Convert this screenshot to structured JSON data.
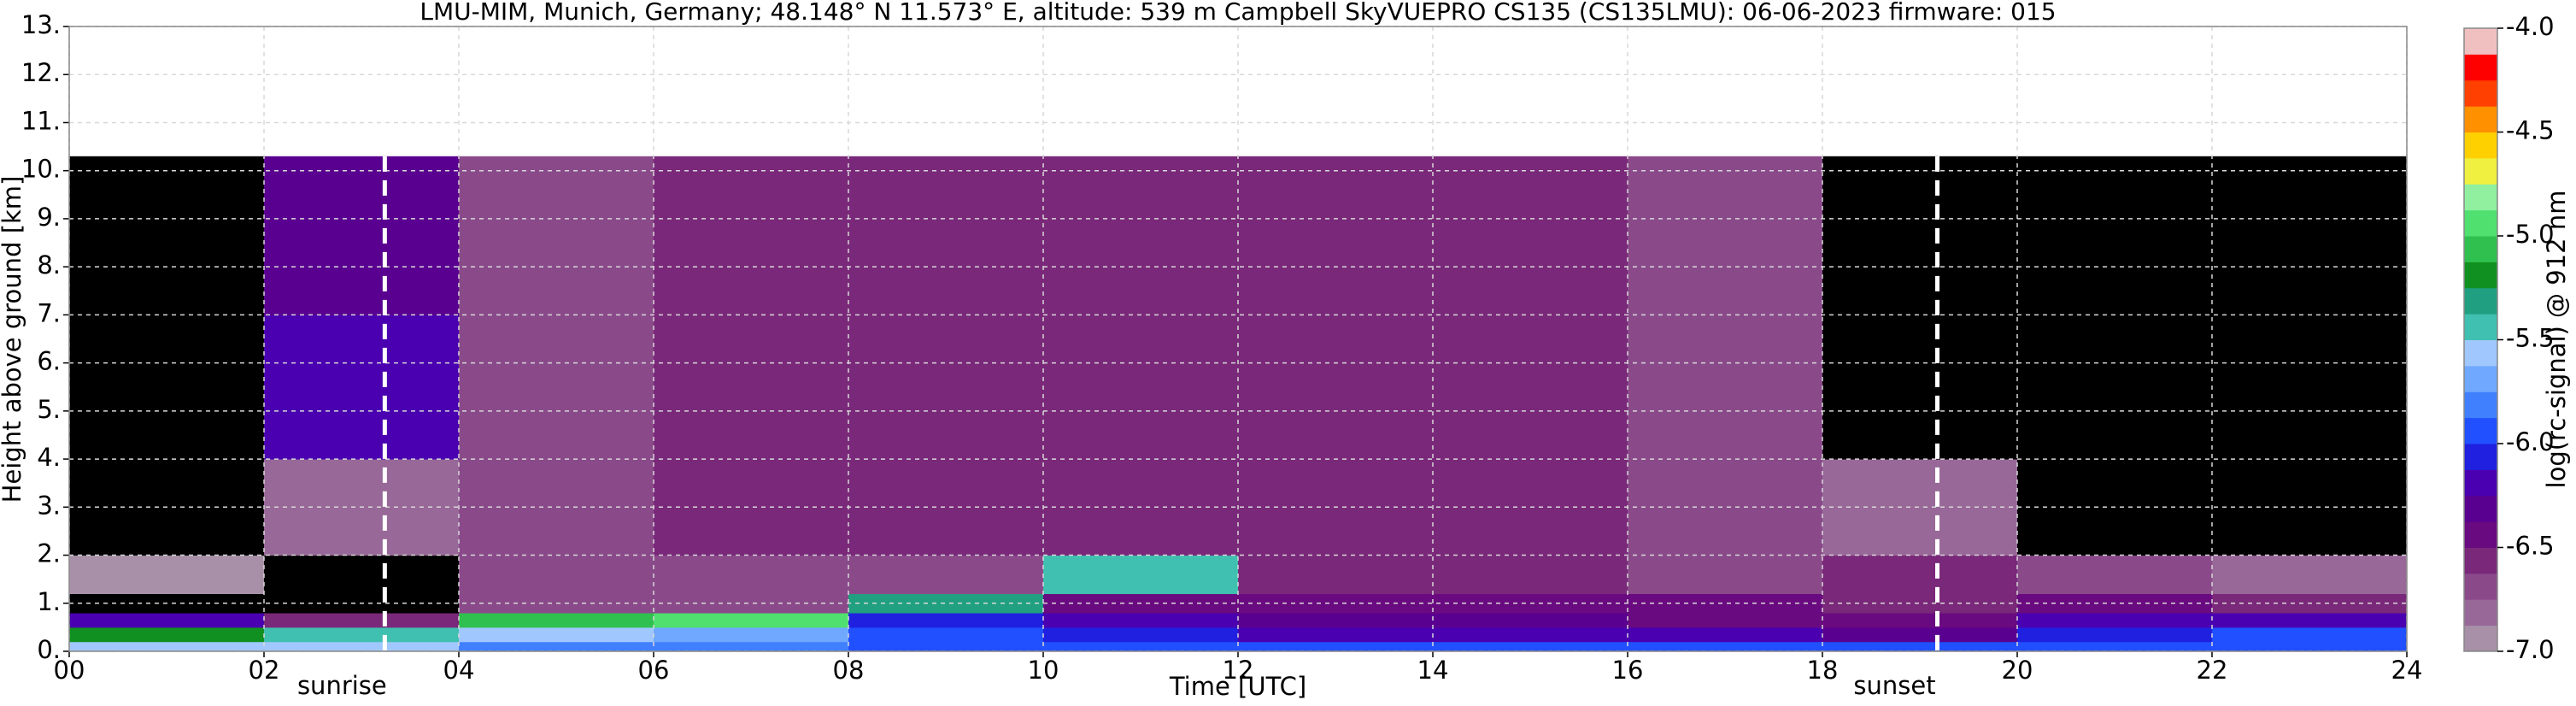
{
  "chart_data": {
    "type": "heatmap",
    "title": "LMU-MIM, Munich, Germany; 48.148° N 11.573° E, altitude: 539 m    Campbell SkyVUEPRO CS135 (CS135LMU): 06-06-2023    firmware: 015",
    "xlabel": "Time [UTC]",
    "ylabel": "Height above ground [km]",
    "colorbar_label": "log(rc-signal) @ 912 nm",
    "x_edges": [
      0,
      2,
      4,
      6,
      8,
      10,
      12,
      14,
      16,
      18,
      20,
      22,
      24
    ],
    "y_edges": [
      0,
      0.2,
      0.5,
      0.8,
      1.2,
      2,
      4,
      7,
      10.3
    ],
    "z": [
      [
        -5.6,
        -5.2,
        -6.2,
        -7.5,
        -6.9,
        -7.5,
        -7.5,
        -7.5
      ],
      [
        -5.6,
        -5.5,
        -6.6,
        -7.2,
        -7.5,
        -6.8,
        -6.2,
        -6.3
      ],
      [
        -5.8,
        -5.6,
        -5.1,
        -6.7,
        -6.7,
        -6.7,
        -6.7,
        -6.7
      ],
      [
        -5.8,
        -5.7,
        -5.0,
        -6.7,
        -6.7,
        -6.6,
        -6.6,
        -6.6
      ],
      [
        -5.9,
        -6.0,
        -6.1,
        -5.3,
        -6.7,
        -6.6,
        -6.6,
        -6.6
      ],
      [
        -6.0,
        -6.1,
        -6.2,
        -6.4,
        -5.4,
        -6.6,
        -6.6,
        -6.6
      ],
      [
        -6.0,
        -6.2,
        -6.3,
        -6.5,
        -6.6,
        -6.6,
        -6.6,
        -6.6
      ],
      [
        -6.0,
        -6.2,
        -6.3,
        -6.5,
        -6.6,
        -6.6,
        -6.6,
        -6.6
      ],
      [
        -6.0,
        -6.2,
        -6.4,
        -6.5,
        -6.7,
        -6.7,
        -6.7,
        -6.7
      ],
      [
        -6.0,
        -6.3,
        -6.5,
        -6.6,
        -6.6,
        -6.8,
        -7.2,
        -7.3
      ],
      [
        -5.9,
        -6.1,
        -6.2,
        -6.5,
        -6.7,
        -7.5,
        -7.5,
        -7.3
      ],
      [
        -5.9,
        -6.0,
        -6.2,
        -6.6,
        -6.8,
        -7.5,
        -7.5,
        -7.3
      ]
    ],
    "clim": [
      -7,
      -4
    ],
    "colormap": [
      "#a890a8",
      "#986898",
      "#8a4a8a",
      "#7a287a",
      "#6a0a80",
      "#5a0090",
      "#4a00b0",
      "#2020e0",
      "#2050ff",
      "#4080ff",
      "#70a8ff",
      "#a0c8ff",
      "#40c0b0",
      "#20a080",
      "#109020",
      "#30c050",
      "#50e070",
      "#90f0a0",
      "#f0f040",
      "#ffd000",
      "#ff9000",
      "#ff4000",
      "#ff0000",
      "#f0c0c0"
    ],
    "under_color": "#000000",
    "xlim": [
      0,
      24
    ],
    "ylim": [
      0,
      13
    ],
    "xticks": [
      {
        "value": 0,
        "label": "00"
      },
      {
        "value": 2,
        "label": "02"
      },
      {
        "value": 4,
        "label": "04"
      },
      {
        "value": 6,
        "label": "06"
      },
      {
        "value": 8,
        "label": "08"
      },
      {
        "value": 10,
        "label": "10"
      },
      {
        "value": 12,
        "label": "12"
      },
      {
        "value": 14,
        "label": "14"
      },
      {
        "value": 16,
        "label": "16"
      },
      {
        "value": 18,
        "label": "18"
      },
      {
        "value": 20,
        "label": "20"
      },
      {
        "value": 22,
        "label": "22"
      },
      {
        "value": 24,
        "label": "24"
      }
    ],
    "yticks": [
      {
        "value": 0,
        "label": "0."
      },
      {
        "value": 1,
        "label": "1."
      },
      {
        "value": 2,
        "label": "2."
      },
      {
        "value": 3,
        "label": "3."
      },
      {
        "value": 4,
        "label": "4."
      },
      {
        "value": 5,
        "label": "5."
      },
      {
        "value": 6,
        "label": "6."
      },
      {
        "value": 7,
        "label": "7."
      },
      {
        "value": 8,
        "label": "8."
      },
      {
        "value": 9,
        "label": "9."
      },
      {
        "value": 10,
        "label": "10."
      },
      {
        "value": 11,
        "label": "11."
      },
      {
        "value": 12,
        "label": "12."
      },
      {
        "value": 13,
        "label": "13."
      }
    ],
    "cticks": [
      {
        "value": -7,
        "label": "-7.0"
      },
      -6.5,
      {
        "value": -6,
        "label": "-6.0"
      },
      -5.5,
      {
        "value": -5,
        "label": "-5.0"
      },
      -4.5,
      {
        "value": -4,
        "label": "-4.0"
      }
    ],
    "grid": true,
    "annotations": [
      {
        "text": "sunrise",
        "x": 3.24
      },
      {
        "text": "sunset",
        "x": 19.18
      }
    ]
  }
}
